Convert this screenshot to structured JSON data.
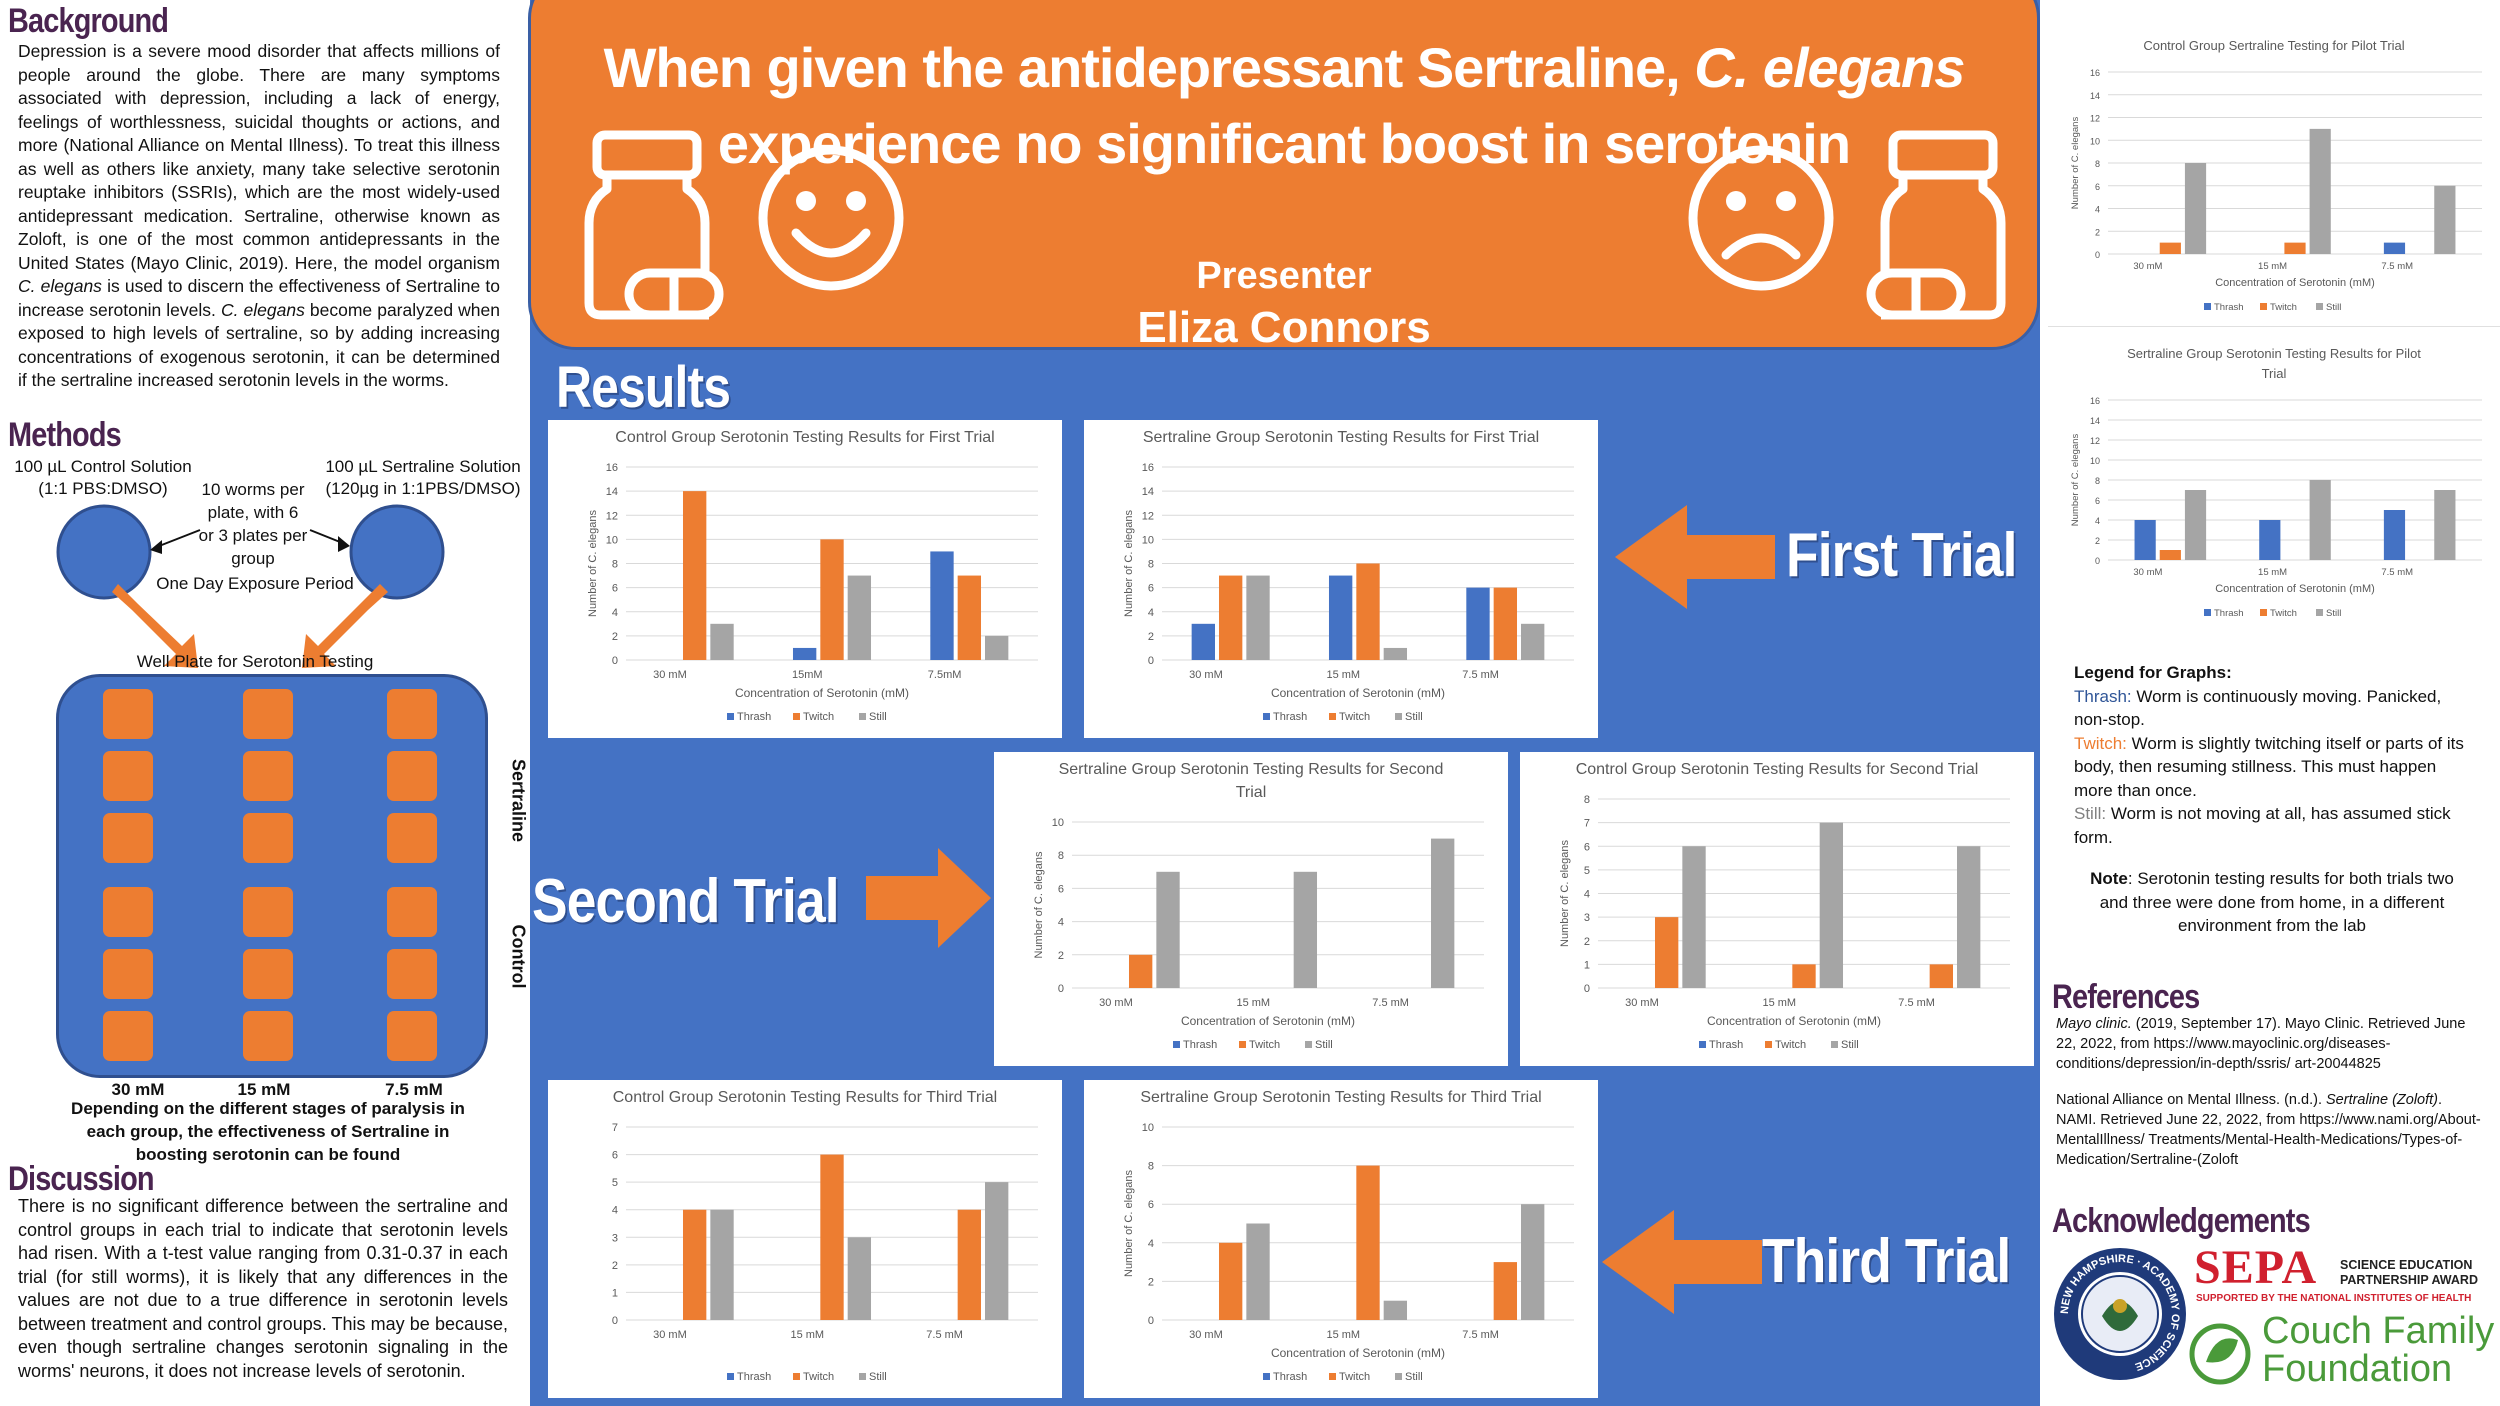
{
  "banner": {
    "title_line1_a": "When given the antidepressant Sertraline, ",
    "title_line1_b": "C. elegans",
    "title_line2": "experience no significant boost in serotonin",
    "presenter_label": "Presenter",
    "presenter_name": "Eliza Connors"
  },
  "background": {
    "title": "Background",
    "text_1": "Depression is a severe mood disorder that affects millions of people around the globe. There are many symptoms associated with depression, including a lack of energy, feelings of worthlessness, suicidal thoughts or actions, and more (National Alliance on Mental Illness). To treat this illness as well as others like anxiety, many take selective serotonin reuptake inhibitors (SSRIs), which are the most widely-used antidepressant medication. Sertraline, otherwise known as Zoloft, is one of the most common antidepressants in the United States (Mayo Clinic, 2019). Here, the model organism ",
    "text_italic_1": "C. elegans",
    "text_2": " is used to discern the effectiveness of Sertraline to increase serotonin levels. ",
    "text_italic_2": "C. elegans",
    "text_3": " become paralyzed when exposed to high levels of sertraline, so by adding increasing concentrations of exogenous serotonin, it can be determined if the sertraline increased serotonin levels in the worms."
  },
  "methods": {
    "title": "Methods",
    "control_solution_1": "100 µL Control Solution",
    "control_solution_2": "(1:1 PBS:DMSO)",
    "sertraline_solution_1": "100 µL Sertraline Solution",
    "sertraline_solution_2": "(120µg in 1:1PBS/DMSO)",
    "worms_text_1": "10 worms per",
    "worms_text_2": "plate, with 6",
    "worms_text_3": "or 3 plates per",
    "worms_text_4": "group",
    "exposure": "One Day Exposure Period",
    "well_plate": "Well Plate for Serotonin Testing",
    "side_sertraline": "Sertraline",
    "side_control": "Control",
    "col_labels": [
      "30 mM",
      "15 mM",
      "7.5 mM"
    ],
    "caption": "Depending on the different stages of paralysis in each group, the effectiveness of Sertraline in boosting serotonin can be found"
  },
  "discussion": {
    "title": "Discussion",
    "text": "There is no significant difference between the sertraline and control groups in each trial to indicate that serotonin levels had risen. With a t-test value ranging from 0.31-0.37 in each trial (for still worms), it is likely that any differences in the values are not due to a true difference in serotonin levels between treatment and control groups. This may be because, even though sertraline changes serotonin signaling in the worms' neurons, it does not increase levels of serotonin."
  },
  "results": {
    "title": "Results",
    "first_trial": "First Trial",
    "second_trial": "Second Trial",
    "third_trial": "Third Trial"
  },
  "legend_box": {
    "title": "Legend for Graphs:",
    "thrash_label": "Thrash:",
    "thrash_text": " Worm is continuously moving. Panicked, non-stop.",
    "twitch_label": "Twitch:",
    "twitch_text": " Worm is slightly twitching itself or parts of its body, then resuming stillness. This must happen more than once.",
    "still_label": "Still:",
    "still_text": " Worm is not moving at all, has assumed stick form.",
    "note_label": "Note",
    "note_text": ": Serotonin testing results for both trials two and three were done from home, in a different environment from the lab",
    "colors": {
      "thrash": "#4472c4",
      "twitch": "#ed7d31",
      "still": "#a5a5a5"
    }
  },
  "references": {
    "title": "References",
    "ref1_italic": "Mayo clinic.",
    "ref1": " (2019, September 17). Mayo Clinic. Retrieved June 22, 2022, from https://www.mayoclinic.org/diseases-conditions/depression/in-depth/ssris/ art-20044825",
    "ref2_a": "National Alliance on Mental Illness. (n.d.). ",
    "ref2_italic": "Sertraline (Zoloft)",
    "ref2_b": ". NAMI. Retrieved June 22, 2022, from https://www.nami.org/About-MentalIllness/ Treatments/Mental-Health-Medications/Types-of-Medication/Sertraline-(Zoloft"
  },
  "acknowledgements": {
    "title": "Acknowledgements",
    "nh_text": "NEW HAMPSHIRE · ACADEMY OF SCIENCE",
    "sepa": "SEPA",
    "sepa_sub1": "SCIENCE EDUCATION",
    "sepa_sub2": "PARTNERSHIP AWARD",
    "sepa_sub3": "SUPPORTED BY THE NATIONAL INSTITUTES OF HEALTH",
    "couch1": "Couch Family",
    "couch2": "Foundation"
  },
  "chart_data": [
    {
      "id": "pilot_control",
      "type": "bar",
      "title": "Control Group Sertraline Testing for Pilot Trial",
      "xlabel": "Concentration of Serotonin (mM)",
      "ylabel": "Number of C. elegans",
      "categories": [
        "30 mM",
        "15 mM",
        "7.5 mM"
      ],
      "ylim": [
        0,
        16
      ],
      "ticks": [
        0,
        2,
        4,
        6,
        8,
        10,
        12,
        14,
        16
      ],
      "series": [
        {
          "name": "Thrash",
          "values": [
            0,
            0,
            1
          ]
        },
        {
          "name": "Twitch",
          "values": [
            1,
            1,
            0
          ]
        },
        {
          "name": "Still",
          "values": [
            8,
            11,
            6
          ]
        }
      ]
    },
    {
      "id": "pilot_sertraline",
      "type": "bar",
      "title": "Sertraline Group Serotonin Testing Results for Pilot Trial",
      "xlabel": "Concentration of Serotonin (mM)",
      "ylabel": "Number of C. elegans",
      "categories": [
        "30 mM",
        "15 mM",
        "7.5 mM"
      ],
      "ylim": [
        0,
        16
      ],
      "ticks": [
        0,
        2,
        4,
        6,
        8,
        10,
        12,
        14,
        16
      ],
      "series": [
        {
          "name": "Thrash",
          "values": [
            4,
            4,
            5
          ]
        },
        {
          "name": "Twitch",
          "values": [
            1,
            0,
            0
          ]
        },
        {
          "name": "Still",
          "values": [
            7,
            8,
            7
          ]
        }
      ]
    },
    {
      "id": "first_control",
      "type": "bar",
      "title": "Control Group Serotonin Testing Results for First Trial",
      "xlabel": "Concentration of Serotonin (mM)",
      "ylabel": "Number of C. elegans",
      "categories": [
        "30 mM",
        "15mM",
        "7.5mM"
      ],
      "ylim": [
        0,
        16
      ],
      "ticks": [
        0,
        2,
        4,
        6,
        8,
        10,
        12,
        14,
        16
      ],
      "series": [
        {
          "name": "Thrash",
          "values": [
            0,
            1,
            9
          ]
        },
        {
          "name": "Twitch",
          "values": [
            14,
            10,
            7
          ]
        },
        {
          "name": "Still",
          "values": [
            3,
            7,
            2
          ]
        }
      ]
    },
    {
      "id": "first_sertraline",
      "type": "bar",
      "title": "Sertraline Group Serotonin Testing Results for First Trial",
      "xlabel": "Concentration of Serotonin (mM)",
      "ylabel": "Number of C. elegans",
      "categories": [
        "30 mM",
        "15 mM",
        "7.5 mM"
      ],
      "ylim": [
        0,
        16
      ],
      "ticks": [
        0,
        2,
        4,
        6,
        8,
        10,
        12,
        14,
        16
      ],
      "series": [
        {
          "name": "Thrash",
          "values": [
            3,
            7,
            6
          ]
        },
        {
          "name": "Twitch",
          "values": [
            7,
            8,
            6
          ]
        },
        {
          "name": "Still",
          "values": [
            7,
            1,
            3
          ]
        }
      ]
    },
    {
      "id": "second_sertraline",
      "type": "bar",
      "title": "Sertraline Group Serotonin Testing Results for Second Trial",
      "xlabel": "Concentration of Serotonin (mM)",
      "ylabel": "Number of C. elegans",
      "categories": [
        "30 mM",
        "15 mM",
        "7.5 mM"
      ],
      "ylim": [
        0,
        10
      ],
      "ticks": [
        0,
        2,
        4,
        6,
        8,
        10
      ],
      "series": [
        {
          "name": "Thrash",
          "values": [
            0,
            0,
            0
          ]
        },
        {
          "name": "Twitch",
          "values": [
            2,
            0,
            0
          ]
        },
        {
          "name": "Still",
          "values": [
            7,
            7,
            9
          ]
        }
      ]
    },
    {
      "id": "second_control",
      "type": "bar",
      "title": "Control Group Serotonin Testing Results for Second Trial",
      "xlabel": "Concentration of Serotonin (mM)",
      "ylabel": "Number of C. elegans",
      "categories": [
        "30 mM",
        "15 mM",
        "7.5 mM"
      ],
      "ylim": [
        0,
        8
      ],
      "ticks": [
        0,
        1,
        2,
        3,
        4,
        5,
        6,
        7,
        8
      ],
      "series": [
        {
          "name": "Thrash",
          "values": [
            0,
            0,
            0
          ]
        },
        {
          "name": "Twitch",
          "values": [
            3,
            1,
            1
          ]
        },
        {
          "name": "Still",
          "values": [
            6,
            7,
            6
          ]
        }
      ]
    },
    {
      "id": "third_control",
      "type": "bar",
      "title": "Control Group Serotonin Testing Results for Third Trial",
      "xlabel": "",
      "ylabel": "",
      "categories": [
        "30 mM",
        "15 mM",
        "7.5 mM"
      ],
      "ylim": [
        0,
        7
      ],
      "ticks": [
        0,
        1,
        2,
        3,
        4,
        5,
        6,
        7
      ],
      "series": [
        {
          "name": "Thrash",
          "values": [
            0,
            0,
            0
          ]
        },
        {
          "name": "Twitch",
          "values": [
            4,
            6,
            4
          ]
        },
        {
          "name": "Still",
          "values": [
            4,
            3,
            5
          ]
        }
      ]
    },
    {
      "id": "third_sertraline",
      "type": "bar",
      "title": "Sertraline Group Serotonin Testing Results for Third Trial",
      "xlabel": "Concentration of Serotonin (mM)",
      "ylabel": "Number of C. elegans",
      "categories": [
        "30 mM",
        "15 mM",
        "7.5 mM"
      ],
      "ylim": [
        0,
        10
      ],
      "ticks": [
        0,
        2,
        4,
        6,
        8,
        10
      ],
      "series": [
        {
          "name": "Thrash",
          "values": [
            0,
            0,
            0
          ]
        },
        {
          "name": "Twitch",
          "values": [
            4,
            8,
            3
          ]
        },
        {
          "name": "Still",
          "values": [
            5,
            1,
            6
          ]
        }
      ]
    }
  ]
}
